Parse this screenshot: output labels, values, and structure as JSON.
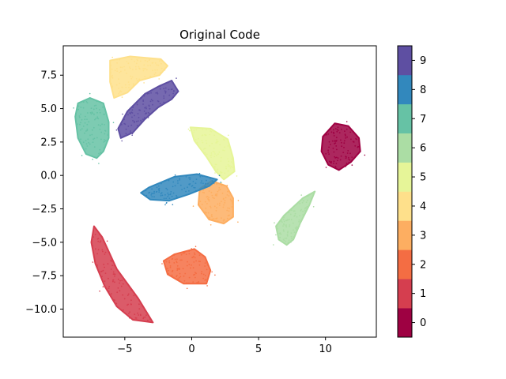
{
  "chart_data": {
    "type": "scatter",
    "title": "Original Code",
    "xlabel": "",
    "ylabel": "",
    "xlim": [
      -9.6,
      13.8
    ],
    "ylim": [
      -12.1,
      9.7
    ],
    "xticks": [
      -5,
      0,
      5,
      10
    ],
    "xtick_labels": [
      "−5",
      "0",
      "5",
      "10"
    ],
    "yticks": [
      7.5,
      5.0,
      2.5,
      0.0,
      -2.5,
      -5.0,
      -7.5,
      -10.0
    ],
    "ytick_labels": [
      "7.5",
      "5.0",
      "2.5",
      "0.0",
      "−2.5",
      "−5.0",
      "−7.5",
      "−10.0"
    ],
    "grid": false,
    "colorbar": {
      "labels": [
        "0",
        "1",
        "2",
        "3",
        "4",
        "5",
        "6",
        "7",
        "8",
        "9"
      ],
      "colors": [
        "#9e0142",
        "#d53e4f",
        "#f46d43",
        "#fdae61",
        "#fee08b",
        "#e6f598",
        "#abdda4",
        "#66c2a5",
        "#3288bd",
        "#5e4fa2"
      ]
    },
    "clusters": [
      {
        "label": "0",
        "color": "#9e0142",
        "points": [
          [
            10.7,
            3.9
          ],
          [
            11.7,
            3.7
          ],
          [
            12.5,
            2.8
          ],
          [
            12.6,
            1.8
          ],
          [
            11.9,
            1.0
          ],
          [
            11.0,
            0.4
          ],
          [
            10.2,
            0.8
          ],
          [
            9.7,
            1.8
          ],
          [
            9.8,
            2.9
          ]
        ]
      },
      {
        "label": "1",
        "color": "#d53e4f",
        "points": [
          [
            -7.3,
            -3.8
          ],
          [
            -6.7,
            -4.6
          ],
          [
            -5.6,
            -7.0
          ],
          [
            -4.0,
            -9.2
          ],
          [
            -2.9,
            -11.0
          ],
          [
            -4.4,
            -10.8
          ],
          [
            -5.6,
            -9.8
          ],
          [
            -6.5,
            -8.3
          ],
          [
            -7.2,
            -6.6
          ],
          [
            -7.5,
            -5.0
          ]
        ]
      },
      {
        "label": "2",
        "color": "#f46d43",
        "points": [
          [
            -1.3,
            -5.9
          ],
          [
            0.2,
            -5.5
          ],
          [
            1.0,
            -6.1
          ],
          [
            1.4,
            -7.1
          ],
          [
            1.1,
            -8.1
          ],
          [
            -0.6,
            -8.1
          ],
          [
            -1.8,
            -7.4
          ],
          [
            -2.1,
            -6.4
          ]
        ]
      },
      {
        "label": "3",
        "color": "#fdae61",
        "points": [
          [
            1.5,
            -0.4
          ],
          [
            2.6,
            -0.8
          ],
          [
            3.1,
            -1.7
          ],
          [
            3.1,
            -3.1
          ],
          [
            2.4,
            -3.6
          ],
          [
            1.3,
            -3.3
          ],
          [
            0.5,
            -2.2
          ],
          [
            0.6,
            -1.0
          ]
        ]
      },
      {
        "label": "4",
        "color": "#fee08b",
        "points": [
          [
            -6.1,
            8.6
          ],
          [
            -4.6,
            8.9
          ],
          [
            -2.3,
            8.7
          ],
          [
            -1.8,
            8.2
          ],
          [
            -2.4,
            7.5
          ],
          [
            -3.9,
            7.1
          ],
          [
            -4.8,
            6.2
          ],
          [
            -5.8,
            5.8
          ],
          [
            -6.1,
            7.0
          ]
        ]
      },
      {
        "label": "5",
        "color": "#e6f598",
        "points": [
          [
            -0.1,
            3.6
          ],
          [
            1.4,
            3.5
          ],
          [
            2.7,
            2.7
          ],
          [
            3.1,
            1.3
          ],
          [
            3.2,
            0.3
          ],
          [
            2.4,
            -0.3
          ],
          [
            1.8,
            0.3
          ],
          [
            1.1,
            1.4
          ],
          [
            0.2,
            2.6
          ]
        ]
      },
      {
        "label": "6",
        "color": "#abdda4",
        "points": [
          [
            9.2,
            -1.2
          ],
          [
            8.8,
            -2.2
          ],
          [
            8.1,
            -3.6
          ],
          [
            7.6,
            -4.8
          ],
          [
            7.1,
            -5.2
          ],
          [
            6.5,
            -4.8
          ],
          [
            6.3,
            -3.8
          ],
          [
            6.9,
            -3.0
          ],
          [
            8.3,
            -1.7
          ]
        ]
      },
      {
        "label": "7",
        "color": "#66c2a5",
        "points": [
          [
            -8.5,
            5.4
          ],
          [
            -7.6,
            5.8
          ],
          [
            -6.6,
            5.4
          ],
          [
            -6.2,
            4.0
          ],
          [
            -6.2,
            2.8
          ],
          [
            -6.6,
            1.8
          ],
          [
            -7.1,
            1.3
          ],
          [
            -7.9,
            1.6
          ],
          [
            -8.5,
            2.8
          ],
          [
            -8.7,
            4.4
          ]
        ]
      },
      {
        "label": "8",
        "color": "#3288bd",
        "points": [
          [
            -3.2,
            -0.9
          ],
          [
            -1.3,
            -0.1
          ],
          [
            0.4,
            0.1
          ],
          [
            1.9,
            -0.3
          ],
          [
            1.3,
            -0.8
          ],
          [
            -0.2,
            -1.4
          ],
          [
            -1.7,
            -1.9
          ],
          [
            -3.1,
            -1.8
          ],
          [
            -3.8,
            -1.3
          ]
        ]
      },
      {
        "label": "9",
        "color": "#5e4fa2",
        "points": [
          [
            -1.5,
            7.1
          ],
          [
            -1.0,
            6.3
          ],
          [
            -1.5,
            5.7
          ],
          [
            -2.5,
            5.1
          ],
          [
            -3.5,
            4.2
          ],
          [
            -4.4,
            3.2
          ],
          [
            -5.3,
            2.8
          ],
          [
            -5.5,
            3.5
          ],
          [
            -4.8,
            4.8
          ],
          [
            -3.5,
            6.1
          ],
          [
            -2.4,
            6.7
          ]
        ]
      }
    ]
  }
}
